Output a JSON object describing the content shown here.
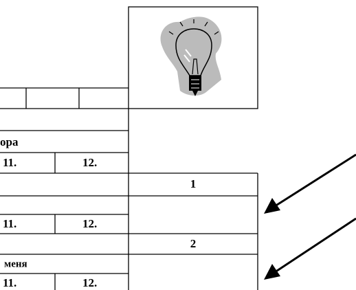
{
  "form": {
    "sections": [
      {
        "heading": "ора",
        "cells": [
          "11.",
          "12."
        ]
      },
      {
        "number": "1",
        "cells": [
          "11.",
          "12."
        ]
      },
      {
        "number": "2",
        "heading": "меня",
        "cells": [
          "11.",
          "12."
        ]
      }
    ]
  }
}
